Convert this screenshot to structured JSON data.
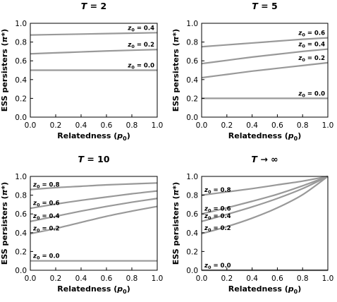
{
  "colors": {
    "curve": "#999999",
    "axis": "#000000",
    "background": "#ffffff"
  },
  "chart_data": [
    {
      "type": "line",
      "title_prefix": "T",
      "title_value": "= 2",
      "xlabel": "Relatedness",
      "xlabel_symbol": "p",
      "xlabel_sub": "0",
      "ylabel": "ESS persisters",
      "ylabel_symbol": "π*",
      "xlim": [
        0.0,
        1.0
      ],
      "ylim": [
        0.0,
        1.0
      ],
      "xticks": [
        "0.0",
        "0.2",
        "0.4",
        "0.6",
        "0.8",
        "1.0"
      ],
      "yticks": [
        "0.0",
        "0.2",
        "0.4",
        "0.6",
        "0.8",
        "1.0"
      ],
      "x": [
        0.0,
        0.2,
        0.4,
        0.6,
        0.8,
        1.0
      ],
      "series": [
        {
          "label_var": "z",
          "label_sub": "0",
          "label_val": "= 0.4",
          "values": [
            0.875,
            0.88,
            0.885,
            0.89,
            0.895,
            0.9
          ]
        },
        {
          "label_var": "z",
          "label_sub": "0",
          "label_val": "= 0.2",
          "values": [
            0.675,
            0.685,
            0.695,
            0.705,
            0.713,
            0.72
          ]
        },
        {
          "label_var": "z",
          "label_sub": "0",
          "label_val": "= 0.0",
          "values": [
            0.5,
            0.5,
            0.5,
            0.5,
            0.5,
            0.5
          ]
        }
      ]
    },
    {
      "type": "line",
      "title_prefix": "T",
      "title_value": "= 5",
      "xlabel": "Relatedness",
      "xlabel_symbol": "p",
      "xlabel_sub": "0",
      "ylabel": "ESS persisters",
      "ylabel_symbol": "π*",
      "xlim": [
        0.0,
        1.0
      ],
      "ylim": [
        0.0,
        1.0
      ],
      "xticks": [
        "0.0",
        "0.2",
        "0.4",
        "0.6",
        "0.8",
        "1.0"
      ],
      "yticks": [
        "0.0",
        "0.2",
        "0.4",
        "0.6",
        "0.8",
        "1.0"
      ],
      "x": [
        0.0,
        0.2,
        0.4,
        0.6,
        0.8,
        1.0
      ],
      "series": [
        {
          "label_var": "z",
          "label_sub": "0",
          "label_val": "= 0.6",
          "values": [
            0.75,
            0.77,
            0.79,
            0.81,
            0.83,
            0.845
          ]
        },
        {
          "label_var": "z",
          "label_sub": "0",
          "label_val": "= 0.4",
          "values": [
            0.57,
            0.605,
            0.64,
            0.67,
            0.7,
            0.725
          ]
        },
        {
          "label_var": "z",
          "label_sub": "0",
          "label_val": "= 0.2",
          "values": [
            0.42,
            0.455,
            0.49,
            0.52,
            0.55,
            0.58
          ]
        },
        {
          "label_var": "z",
          "label_sub": "0",
          "label_val": "= 0.0",
          "values": [
            0.2,
            0.2,
            0.2,
            0.2,
            0.2,
            0.2
          ]
        }
      ]
    },
    {
      "type": "line",
      "title_prefix": "T",
      "title_value": "= 10",
      "xlabel": "Relatedness",
      "xlabel_symbol": "p",
      "xlabel_sub": "0",
      "ylabel": "ESS persisters",
      "ylabel_symbol": "π*",
      "xlim": [
        0.0,
        1.0
      ],
      "ylim": [
        0.0,
        1.0
      ],
      "xticks": [
        "0.0",
        "0.2",
        "0.4",
        "0.6",
        "0.8",
        "1.0"
      ],
      "yticks": [
        "0.0",
        "0.2",
        "0.4",
        "0.6",
        "0.8",
        "1.0"
      ],
      "x": [
        0.0,
        0.2,
        0.4,
        0.6,
        0.8,
        1.0
      ],
      "series": [
        {
          "label_var": "z",
          "label_sub": "0",
          "label_val": "= 0.8",
          "values": [
            0.86,
            0.88,
            0.895,
            0.91,
            0.92,
            0.93
          ]
        },
        {
          "label_var": "z",
          "label_sub": "0",
          "label_val": "= 0.6",
          "values": [
            0.66,
            0.705,
            0.745,
            0.78,
            0.815,
            0.845
          ]
        },
        {
          "label_var": "z",
          "label_sub": "0",
          "label_val": "= 0.4",
          "values": [
            0.52,
            0.575,
            0.63,
            0.68,
            0.725,
            0.765
          ]
        },
        {
          "label_var": "z",
          "label_sub": "0",
          "label_val": "= 0.2",
          "values": [
            0.39,
            0.445,
            0.51,
            0.575,
            0.63,
            0.68
          ]
        },
        {
          "label_var": "z",
          "label_sub": "0",
          "label_val": "= 0.0",
          "values": [
            0.1,
            0.1,
            0.1,
            0.1,
            0.1,
            0.1
          ]
        }
      ]
    },
    {
      "type": "line",
      "title_prefix": "T",
      "title_value": "→ ∞",
      "xlabel": "Relatedness",
      "xlabel_symbol": "p",
      "xlabel_sub": "0",
      "ylabel": "ESS persisters",
      "ylabel_symbol": "π*",
      "xlim": [
        0.0,
        1.0
      ],
      "ylim": [
        0.0,
        1.0
      ],
      "xticks": [
        "0.0",
        "0.2",
        "0.4",
        "0.6",
        "0.8",
        "1.0"
      ],
      "yticks": [
        "0.0",
        "0.2",
        "0.4",
        "0.6",
        "0.8",
        "1.0"
      ],
      "x": [
        0.0,
        0.2,
        0.4,
        0.6,
        0.8,
        1.0
      ],
      "series": [
        {
          "label_var": "z",
          "label_sub": "0",
          "label_val": "= 0.8",
          "values": [
            0.8,
            0.835,
            0.87,
            0.91,
            0.95,
            1.0
          ]
        },
        {
          "label_var": "z",
          "label_sub": "0",
          "label_val": "= 0.6",
          "values": [
            0.6,
            0.665,
            0.735,
            0.81,
            0.9,
            1.0
          ]
        },
        {
          "label_var": "z",
          "label_sub": "0",
          "label_val": "= 0.4",
          "values": [
            0.52,
            0.595,
            0.675,
            0.765,
            0.87,
            1.0
          ]
        },
        {
          "label_var": "z",
          "label_sub": "0",
          "label_val": "= 0.2",
          "values": [
            0.39,
            0.465,
            0.555,
            0.665,
            0.805,
            1.0
          ]
        },
        {
          "label_var": "z",
          "label_sub": "0",
          "label_val": "= 0.0",
          "values": [
            0.0,
            0.0,
            0.0,
            0.0,
            0.0,
            0.0
          ]
        }
      ]
    }
  ]
}
